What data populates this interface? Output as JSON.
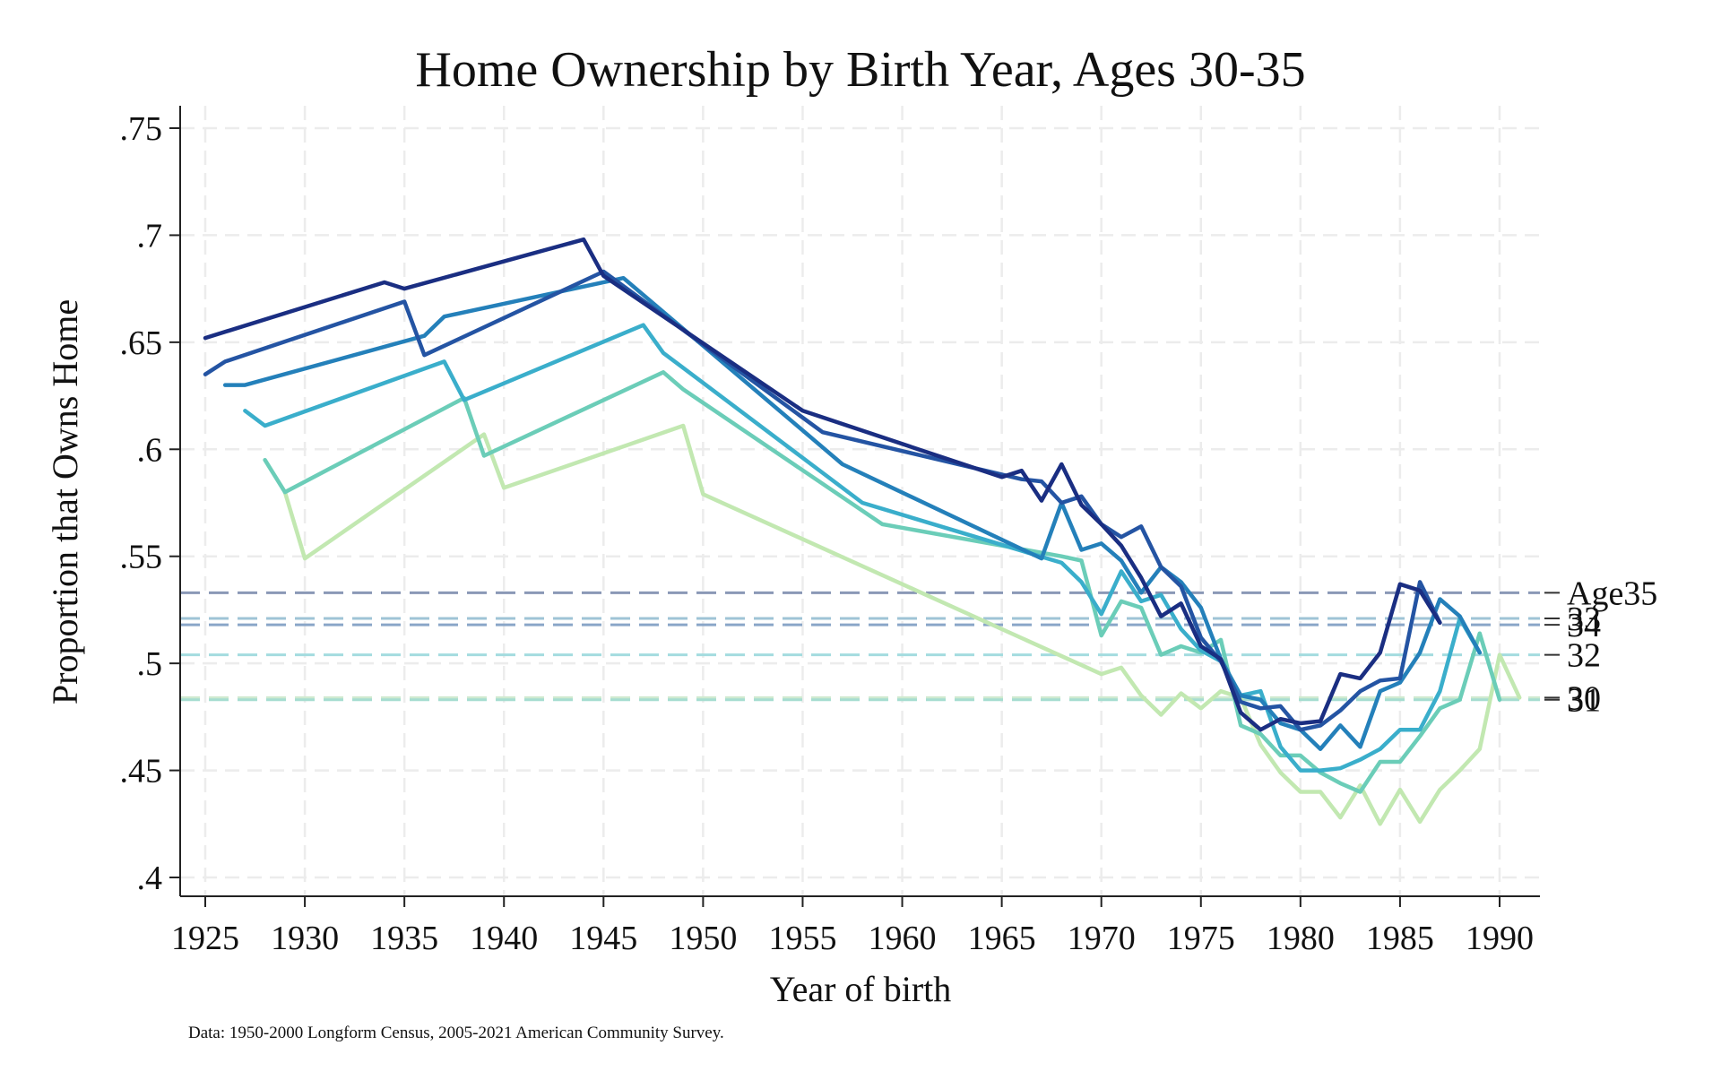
{
  "chart_data": {
    "type": "line",
    "title": "Home Ownership by Birth Year, Ages 30-35",
    "xlabel": "Year of birth",
    "ylabel": "Proportion that Owns Home",
    "note": "Data: 1950-2000 Longform Census, 2005-2021 American Community Survey.",
    "xlim": [
      1924,
      1992
    ],
    "ylim": [
      0.395,
      0.755
    ],
    "x_ticks": [
      1925,
      1930,
      1935,
      1940,
      1945,
      1950,
      1955,
      1960,
      1965,
      1970,
      1975,
      1980,
      1985,
      1990
    ],
    "x_tick_labels": [
      "1925",
      "1930",
      "1935",
      "1940",
      "1945",
      "1950",
      "1955",
      "1960",
      "1965",
      "1970",
      "1975",
      "1980",
      "1985",
      "1990"
    ],
    "y_ticks": [
      0.4,
      0.45,
      0.5,
      0.55,
      0.6,
      0.65,
      0.7,
      0.75
    ],
    "y_tick_labels": [
      ".4",
      ".45",
      ".5",
      ".55",
      ".6",
      ".65",
      ".7",
      ".75"
    ],
    "grid": true,
    "grid_style": "dashed",
    "series": [
      {
        "age": 35,
        "color": "#1a2e82",
        "points": [
          [
            1925,
            0.652
          ],
          [
            1934,
            0.678
          ],
          [
            1935,
            0.675
          ],
          [
            1944,
            0.698
          ],
          [
            1945,
            0.681
          ],
          [
            1955,
            0.618
          ],
          [
            1965,
            0.587
          ],
          [
            1966,
            0.59
          ],
          [
            1967,
            0.576
          ],
          [
            1968,
            0.593
          ],
          [
            1969,
            0.574
          ],
          [
            1970,
            0.565
          ],
          [
            1971,
            0.555
          ],
          [
            1972,
            0.54
          ],
          [
            1973,
            0.522
          ],
          [
            1974,
            0.528
          ],
          [
            1975,
            0.508
          ],
          [
            1976,
            0.502
          ],
          [
            1977,
            0.477
          ],
          [
            1978,
            0.469
          ],
          [
            1979,
            0.474
          ],
          [
            1980,
            0.472
          ],
          [
            1981,
            0.473
          ],
          [
            1982,
            0.495
          ],
          [
            1983,
            0.493
          ],
          [
            1984,
            0.505
          ],
          [
            1985,
            0.537
          ],
          [
            1986,
            0.534
          ],
          [
            1987,
            0.519
          ]
        ]
      },
      {
        "age": 34,
        "color": "#2454a3",
        "points": [
          [
            1925,
            0.635
          ],
          [
            1926,
            0.641
          ],
          [
            1935,
            0.669
          ],
          [
            1936,
            0.644
          ],
          [
            1945,
            0.683
          ],
          [
            1956,
            0.608
          ],
          [
            1966,
            0.586
          ],
          [
            1967,
            0.585
          ],
          [
            1968,
            0.575
          ],
          [
            1969,
            0.578
          ],
          [
            1970,
            0.565
          ],
          [
            1971,
            0.559
          ],
          [
            1972,
            0.564
          ],
          [
            1973,
            0.545
          ],
          [
            1974,
            0.536
          ],
          [
            1975,
            0.512
          ],
          [
            1976,
            0.501
          ],
          [
            1977,
            0.482
          ],
          [
            1978,
            0.479
          ],
          [
            1979,
            0.48
          ],
          [
            1980,
            0.469
          ],
          [
            1981,
            0.471
          ],
          [
            1982,
            0.478
          ],
          [
            1983,
            0.487
          ],
          [
            1984,
            0.492
          ],
          [
            1985,
            0.493
          ],
          [
            1986,
            0.538
          ],
          [
            1987,
            0.519
          ]
        ]
      },
      {
        "age": 33,
        "color": "#2480ba",
        "points": [
          [
            1926,
            0.63
          ],
          [
            1927,
            0.63
          ],
          [
            1936,
            0.653
          ],
          [
            1937,
            0.662
          ],
          [
            1946,
            0.68
          ],
          [
            1957,
            0.593
          ],
          [
            1967,
            0.549
          ],
          [
            1968,
            0.575
          ],
          [
            1969,
            0.553
          ],
          [
            1970,
            0.556
          ],
          [
            1971,
            0.548
          ],
          [
            1972,
            0.533
          ],
          [
            1973,
            0.545
          ],
          [
            1974,
            0.538
          ],
          [
            1975,
            0.526
          ],
          [
            1976,
            0.502
          ],
          [
            1977,
            0.485
          ],
          [
            1978,
            0.483
          ],
          [
            1979,
            0.472
          ],
          [
            1980,
            0.469
          ],
          [
            1981,
            0.46
          ],
          [
            1982,
            0.471
          ],
          [
            1983,
            0.461
          ],
          [
            1984,
            0.487
          ],
          [
            1985,
            0.491
          ],
          [
            1986,
            0.505
          ],
          [
            1987,
            0.53
          ],
          [
            1988,
            0.522
          ],
          [
            1989,
            0.505
          ]
        ]
      },
      {
        "age": 32,
        "color": "#3aaecb",
        "points": [
          [
            1927,
            0.618
          ],
          [
            1928,
            0.611
          ],
          [
            1937,
            0.641
          ],
          [
            1938,
            0.623
          ],
          [
            1947,
            0.658
          ],
          [
            1948,
            0.645
          ],
          [
            1958,
            0.575
          ],
          [
            1968,
            0.547
          ],
          [
            1969,
            0.538
          ],
          [
            1970,
            0.523
          ],
          [
            1971,
            0.543
          ],
          [
            1972,
            0.529
          ],
          [
            1973,
            0.532
          ],
          [
            1974,
            0.516
          ],
          [
            1975,
            0.506
          ],
          [
            1976,
            0.501
          ],
          [
            1977,
            0.485
          ],
          [
            1978,
            0.487
          ],
          [
            1979,
            0.461
          ],
          [
            1980,
            0.45
          ],
          [
            1981,
            0.45
          ],
          [
            1982,
            0.451
          ],
          [
            1983,
            0.455
          ],
          [
            1984,
            0.46
          ],
          [
            1985,
            0.469
          ],
          [
            1986,
            0.469
          ],
          [
            1987,
            0.487
          ],
          [
            1988,
            0.521
          ],
          [
            1989,
            0.505
          ]
        ]
      },
      {
        "age": 31,
        "color": "#6bcdb8",
        "points": [
          [
            1928,
            0.595
          ],
          [
            1929,
            0.58
          ],
          [
            1938,
            0.624
          ],
          [
            1939,
            0.597
          ],
          [
            1948,
            0.636
          ],
          [
            1949,
            0.628
          ],
          [
            1959,
            0.565
          ],
          [
            1968,
            0.55
          ],
          [
            1969,
            0.548
          ],
          [
            1970,
            0.513
          ],
          [
            1971,
            0.529
          ],
          [
            1972,
            0.526
          ],
          [
            1973,
            0.504
          ],
          [
            1974,
            0.508
          ],
          [
            1975,
            0.505
          ],
          [
            1976,
            0.511
          ],
          [
            1977,
            0.471
          ],
          [
            1978,
            0.467
          ],
          [
            1979,
            0.457
          ],
          [
            1980,
            0.457
          ],
          [
            1981,
            0.449
          ],
          [
            1982,
            0.444
          ],
          [
            1983,
            0.44
          ],
          [
            1984,
            0.454
          ],
          [
            1985,
            0.454
          ],
          [
            1986,
            0.466
          ],
          [
            1987,
            0.479
          ],
          [
            1988,
            0.483
          ],
          [
            1989,
            0.514
          ],
          [
            1990,
            0.483
          ]
        ]
      },
      {
        "age": 30,
        "color": "#c2e8b1",
        "points": [
          [
            1929,
            0.58
          ],
          [
            1930,
            0.549
          ],
          [
            1939,
            0.607
          ],
          [
            1940,
            0.582
          ],
          [
            1949,
            0.611
          ],
          [
            1950,
            0.579
          ],
          [
            1970,
            0.495
          ],
          [
            1971,
            0.498
          ],
          [
            1972,
            0.485
          ],
          [
            1973,
            0.476
          ],
          [
            1974,
            0.486
          ],
          [
            1975,
            0.479
          ],
          [
            1976,
            0.487
          ],
          [
            1977,
            0.484
          ],
          [
            1978,
            0.462
          ],
          [
            1979,
            0.449
          ],
          [
            1980,
            0.44
          ],
          [
            1981,
            0.44
          ],
          [
            1982,
            0.428
          ],
          [
            1983,
            0.443
          ],
          [
            1984,
            0.425
          ],
          [
            1985,
            0.441
          ],
          [
            1986,
            0.426
          ],
          [
            1987,
            0.441
          ],
          [
            1988,
            0.45
          ],
          [
            1989,
            0.46
          ],
          [
            1990,
            0.504
          ],
          [
            1991,
            0.484
          ]
        ]
      }
    ],
    "reference_lines": [
      {
        "age": 35,
        "value": 0.533,
        "label": "Age35",
        "color": "#8a98b6"
      },
      {
        "age": 33,
        "value": 0.521,
        "label": "33",
        "color": "#9fc4d6"
      },
      {
        "age": 34,
        "value": 0.518,
        "label": "34",
        "color": "#8aa6c8"
      },
      {
        "age": 32,
        "value": 0.504,
        "label": "32",
        "color": "#a4dcdf"
      },
      {
        "age": 30,
        "value": 0.484,
        "label": "30",
        "color": "#cfead0"
      },
      {
        "age": 31,
        "value": 0.483,
        "label": "31",
        "color": "#a6ddd0"
      }
    ]
  }
}
